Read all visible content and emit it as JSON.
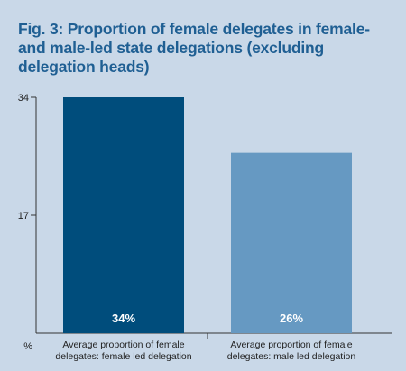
{
  "title": "Fig. 3: Proportion of female delegates in female- and male-led state delegations (excluding delegation heads)",
  "unit_label": "%",
  "colors": {
    "background": "#c9d8e8",
    "title": "#1f5f93"
  },
  "chart_data": {
    "type": "bar",
    "title": "Fig. 3: Proportion of female delegates in female- and male-led state delegations (excluding delegation heads)",
    "categories": [
      [
        "Average proportion of female",
        "delegates: female led delegation"
      ],
      [
        "Average proportion of female",
        "delegates: male led delegation"
      ]
    ],
    "values": [
      34,
      26
    ],
    "value_labels": [
      "34%",
      "26%"
    ],
    "bar_colors": [
      "#004d7c",
      "#6699c2"
    ],
    "ylabel": "%",
    "yticks": [
      17,
      34
    ],
    "ylim": [
      0,
      34
    ],
    "grid": false
  }
}
